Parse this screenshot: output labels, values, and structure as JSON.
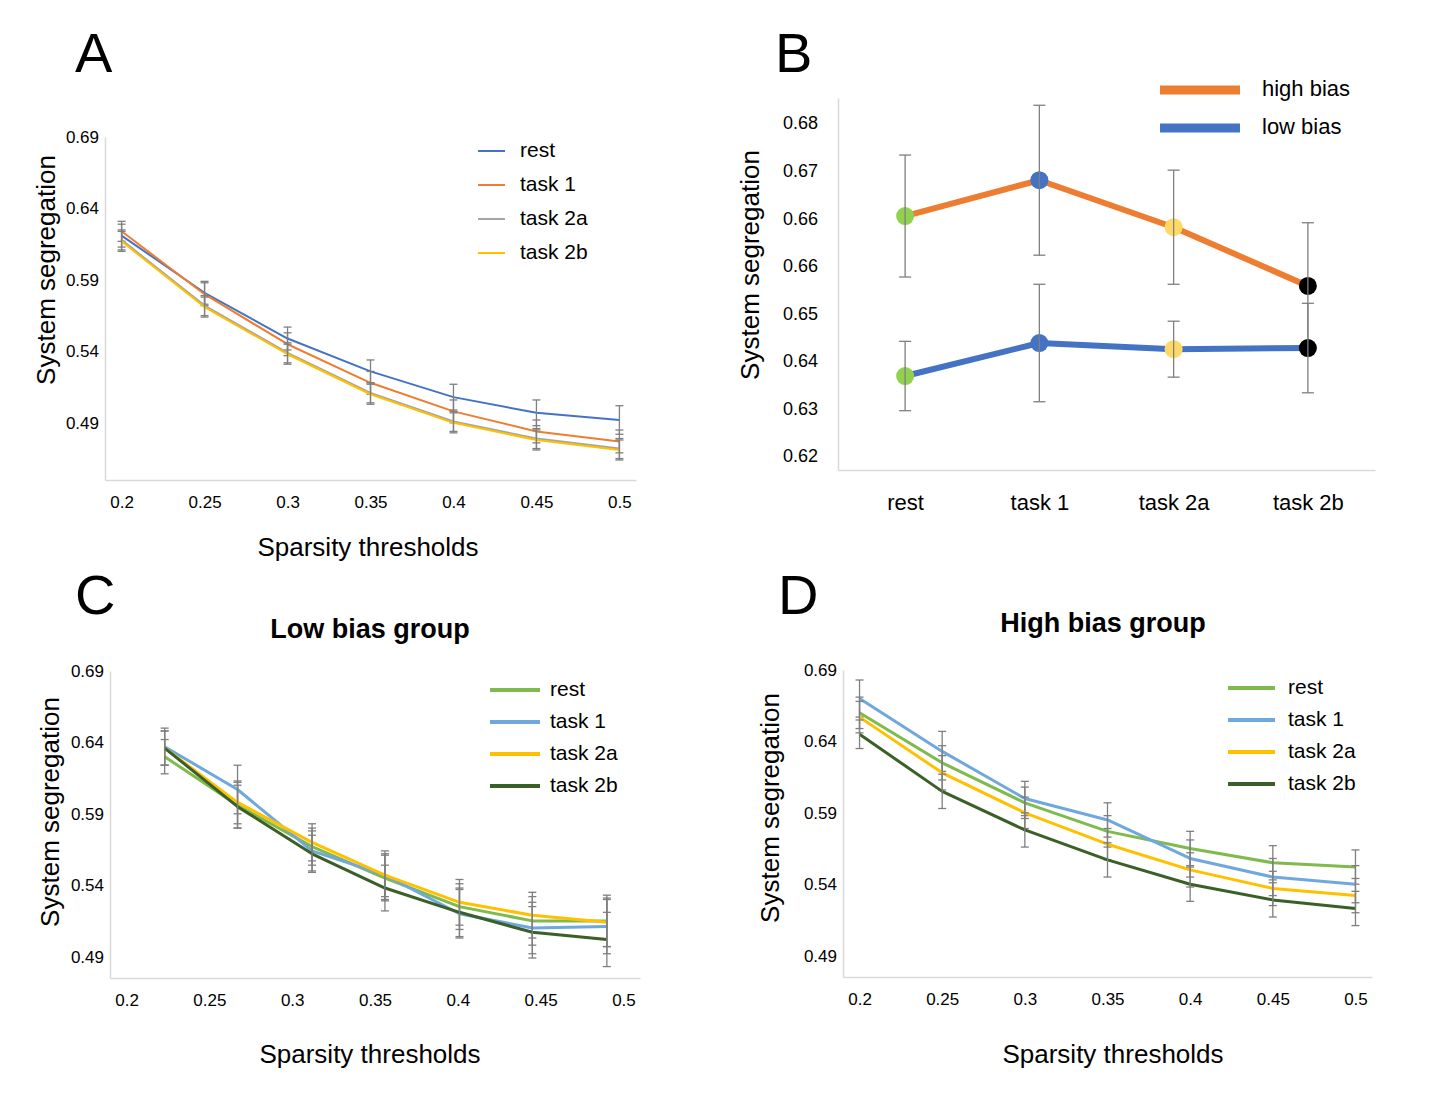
{
  "chart_data": [
    {
      "type": "line",
      "panel": "A",
      "x_label": "Sparsity thresholds",
      "y_label": "System segregation",
      "x": [
        0.2,
        0.25,
        0.3,
        0.35,
        0.4,
        0.45,
        0.5
      ],
      "xlim": [
        0.19,
        0.51
      ],
      "xticks": [
        0.2,
        0.25,
        0.3,
        0.35,
        0.4,
        0.45,
        0.5
      ],
      "ylim": [
        0.45,
        0.69
      ],
      "yticks": [
        0.49,
        0.54,
        0.59,
        0.64,
        0.69
      ],
      "grid": false,
      "legend": "top-right",
      "series": [
        {
          "name": "rest",
          "color": "#4472c4",
          "values": [
            0.621,
            0.581,
            0.549,
            0.526,
            0.508,
            0.497,
            0.492
          ],
          "errors": [
            0.008,
            0.008,
            0.008,
            0.008,
            0.009,
            0.009,
            0.01
          ]
        },
        {
          "name": "task 1",
          "color": "#ed7d31",
          "values": [
            0.624,
            0.58,
            0.545,
            0.518,
            0.498,
            0.484,
            0.477
          ],
          "errors": [
            0.007,
            0.008,
            0.008,
            0.008,
            0.008,
            0.008,
            0.008
          ]
        },
        {
          "name": "task 2a",
          "color": "#a5a5a5",
          "values": [
            0.618,
            0.572,
            0.539,
            0.511,
            0.491,
            0.479,
            0.472
          ],
          "errors": [
            0.007,
            0.007,
            0.007,
            0.007,
            0.007,
            0.007,
            0.007
          ]
        },
        {
          "name": "task 2b",
          "color": "#ffc000",
          "values": [
            0.617,
            0.571,
            0.538,
            0.51,
            0.49,
            0.478,
            0.471
          ],
          "errors": [
            0.007,
            0.007,
            0.007,
            0.007,
            0.007,
            0.007,
            0.007
          ]
        }
      ]
    },
    {
      "type": "line",
      "panel": "B",
      "y_label": "System segregation",
      "categories": [
        "rest",
        "task 1",
        "task 2a",
        "task 2b"
      ],
      "ylim": [
        0.6195,
        0.686
      ],
      "yticks": [
        {
          "value": 0.622,
          "label": "0.62"
        },
        {
          "value": 0.6305,
          "label": "0.63"
        },
        {
          "value": 0.639,
          "label": "0.64"
        },
        {
          "value": 0.6475,
          "label": "0.65"
        },
        {
          "value": 0.656,
          "label": "0.66"
        },
        {
          "value": 0.6645,
          "label": "0.66"
        },
        {
          "value": 0.673,
          "label": "0.67"
        },
        {
          "value": 0.6815,
          "label": "0.68"
        }
      ],
      "grid": false,
      "legend": "top-right",
      "marker": "circle",
      "series": [
        {
          "name": "high bias",
          "color": "#ed7d31",
          "colors": [
            "#92d050",
            "#4472c4",
            "#ffd966",
            "#000000"
          ],
          "values": [
            0.6649,
            0.6713,
            0.6629,
            0.6524
          ],
          "errors": [
            0.0109,
            0.0134,
            0.0102,
            0.0113
          ]
        },
        {
          "name": "low bias",
          "color": "#4472c4",
          "colors": [
            "#92d050",
            "#4472c4",
            "#ffd966",
            "#000000"
          ],
          "values": [
            0.6363,
            0.6422,
            0.6411,
            0.6413
          ],
          "errors": [
            0.0062,
            0.0105,
            0.005,
            0.008
          ]
        }
      ]
    },
    {
      "type": "line",
      "panel": "C",
      "title": "Low bias group",
      "x_label": "Sparsity thresholds",
      "y_label": "System segregation",
      "x": [
        0.223,
        0.267,
        0.312,
        0.356,
        0.401,
        0.445,
        0.49
      ],
      "xlim": [
        0.19,
        0.51
      ],
      "xticks": [
        0.2,
        0.25,
        0.3,
        0.35,
        0.4,
        0.45,
        0.5
      ],
      "ylim": [
        0.475,
        0.69
      ],
      "yticks": [
        0.49,
        0.54,
        0.59,
        0.64,
        0.69
      ],
      "grid": false,
      "legend": "top-right",
      "series": [
        {
          "name": "rest",
          "color": "#7fba4c",
          "values": [
            0.63,
            0.596,
            0.567,
            0.545,
            0.525,
            0.515,
            0.515
          ],
          "errors": [
            0.012,
            0.016,
            0.013,
            0.016,
            0.016,
            0.017,
            0.018
          ]
        },
        {
          "name": "task 1",
          "color": "#6fa8dc",
          "values": [
            0.637,
            0.607,
            0.564,
            0.547,
            0.52,
            0.51,
            0.511
          ],
          "errors": [
            0.013,
            0.017,
            0.014,
            0.017,
            0.017,
            0.018,
            0.019
          ]
        },
        {
          "name": "task 2a",
          "color": "#ffc000",
          "values": [
            0.636,
            0.598,
            0.57,
            0.547,
            0.528,
            0.519,
            0.514
          ],
          "errors": [
            0.012,
            0.015,
            0.013,
            0.015,
            0.016,
            0.016,
            0.017
          ]
        },
        {
          "name": "task 2b",
          "color": "#3a5f27",
          "values": [
            0.636,
            0.595,
            0.562,
            0.538,
            0.521,
            0.507,
            0.502
          ],
          "errors": [
            0.012,
            0.015,
            0.013,
            0.016,
            0.017,
            0.018,
            0.019
          ]
        }
      ]
    },
    {
      "type": "line",
      "panel": "D",
      "title": "High bias group",
      "x_label": "Sparsity thresholds",
      "y_label": "System segregation",
      "x": [
        0.2,
        0.25,
        0.3,
        0.35,
        0.4,
        0.45,
        0.5
      ],
      "xlim": [
        0.19,
        0.51
      ],
      "xticks": [
        0.2,
        0.25,
        0.3,
        0.35,
        0.4,
        0.45,
        0.5
      ],
      "ylim": [
        0.475,
        0.69
      ],
      "yticks": [
        0.49,
        0.54,
        0.59,
        0.64,
        0.69
      ],
      "grid": false,
      "legend": "top-right",
      "series": [
        {
          "name": "rest",
          "color": "#7fba4c",
          "values": [
            0.66,
            0.625,
            0.597,
            0.577,
            0.565,
            0.555,
            0.552
          ],
          "errors": [
            0.011,
            0.012,
            0.011,
            0.011,
            0.012,
            0.012,
            0.012
          ]
        },
        {
          "name": "task 1",
          "color": "#6fa8dc",
          "values": [
            0.67,
            0.633,
            0.6,
            0.585,
            0.558,
            0.545,
            0.54
          ],
          "errors": [
            0.013,
            0.014,
            0.012,
            0.012,
            0.013,
            0.013,
            0.013
          ]
        },
        {
          "name": "task 2a",
          "color": "#ffc000",
          "values": [
            0.657,
            0.618,
            0.59,
            0.568,
            0.55,
            0.537,
            0.532
          ],
          "errors": [
            0.011,
            0.012,
            0.011,
            0.011,
            0.012,
            0.012,
            0.012
          ]
        },
        {
          "name": "task 2b",
          "color": "#3a5f27",
          "values": [
            0.645,
            0.605,
            0.578,
            0.557,
            0.54,
            0.529,
            0.523
          ],
          "errors": [
            0.01,
            0.012,
            0.012,
            0.012,
            0.012,
            0.012,
            0.012
          ]
        }
      ]
    }
  ]
}
